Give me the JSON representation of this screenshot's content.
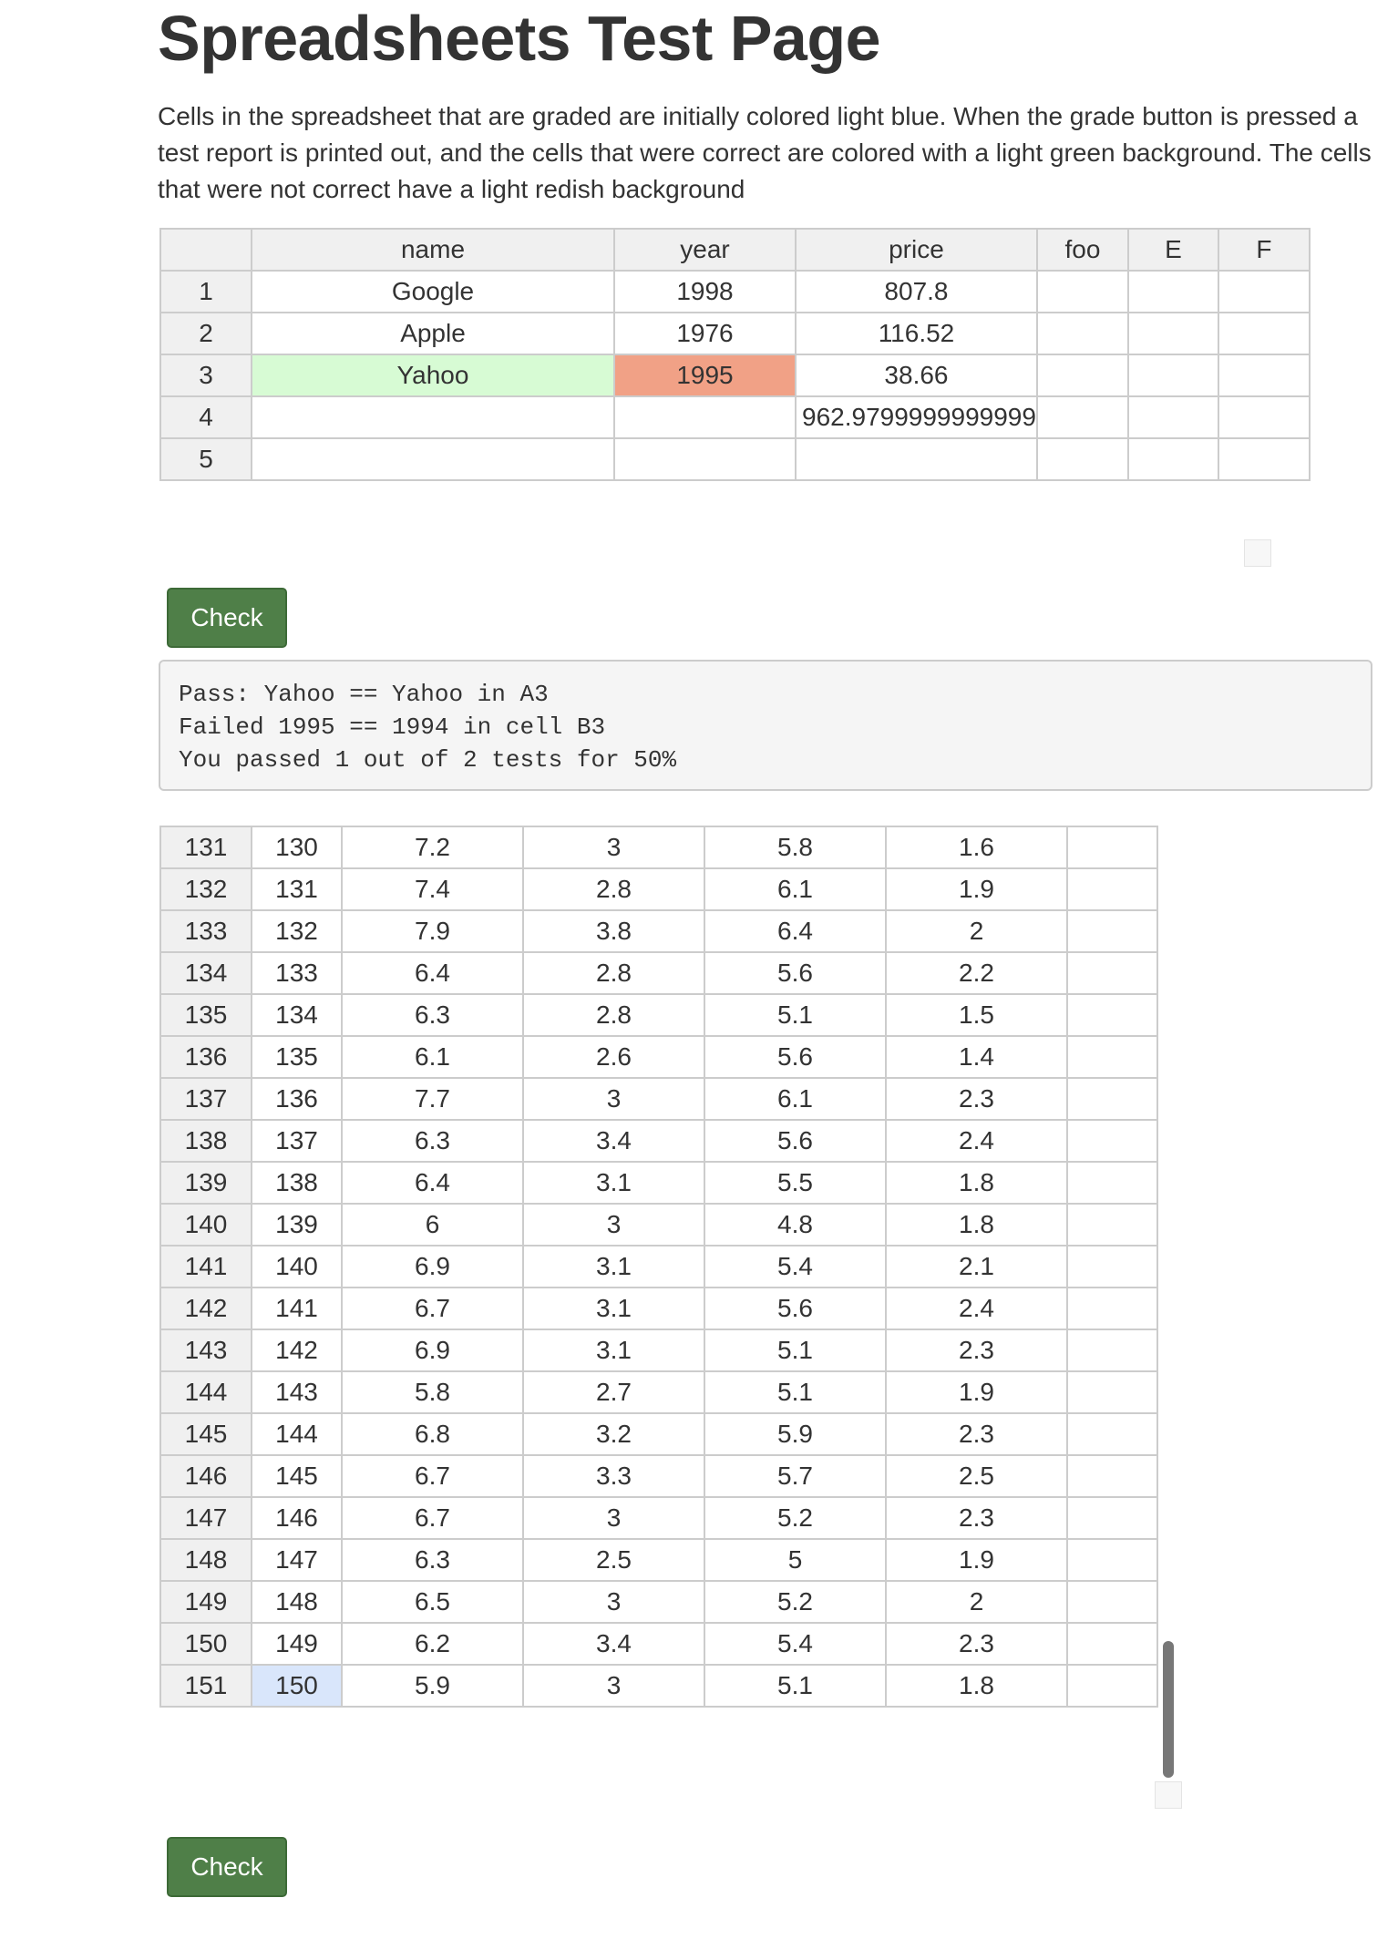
{
  "page": {
    "title": "Spreadsheets Test Page",
    "intro": "Cells in the spreadsheet that are graded are initially colored light blue. When the grade button is pressed a test report is printed out, and the cells that were correct are colored with a light green background. The cells that were not correct have a light redish background"
  },
  "sheet1": {
    "headers": [
      "",
      "name",
      "year",
      "price",
      "foo",
      "E",
      "F"
    ],
    "rows": [
      [
        "1",
        "Google",
        "1998",
        "807.8",
        "",
        "",
        ""
      ],
      [
        "2",
        "Apple",
        "1976",
        "116.52",
        "",
        "",
        ""
      ],
      [
        "3",
        "Yahoo",
        "1995",
        "38.66",
        "",
        "",
        ""
      ],
      [
        "4",
        "",
        "",
        "962.9799999999999",
        "",
        "",
        ""
      ],
      [
        "5",
        "",
        "",
        "",
        "",
        "",
        ""
      ]
    ]
  },
  "buttons": {
    "check_label": "Check"
  },
  "report": {
    "lines": [
      "Pass: Yahoo == Yahoo in A3",
      "Failed 1995 == 1994 in cell B3",
      "You passed 1 out of 2 tests for 50%"
    ]
  },
  "sheet2": {
    "rows": [
      [
        "131",
        "130",
        "7.2",
        "3",
        "5.8",
        "1.6",
        ""
      ],
      [
        "132",
        "131",
        "7.4",
        "2.8",
        "6.1",
        "1.9",
        ""
      ],
      [
        "133",
        "132",
        "7.9",
        "3.8",
        "6.4",
        "2",
        ""
      ],
      [
        "134",
        "133",
        "6.4",
        "2.8",
        "5.6",
        "2.2",
        ""
      ],
      [
        "135",
        "134",
        "6.3",
        "2.8",
        "5.1",
        "1.5",
        ""
      ],
      [
        "136",
        "135",
        "6.1",
        "2.6",
        "5.6",
        "1.4",
        ""
      ],
      [
        "137",
        "136",
        "7.7",
        "3",
        "6.1",
        "2.3",
        ""
      ],
      [
        "138",
        "137",
        "6.3",
        "3.4",
        "5.6",
        "2.4",
        ""
      ],
      [
        "139",
        "138",
        "6.4",
        "3.1",
        "5.5",
        "1.8",
        ""
      ],
      [
        "140",
        "139",
        "6",
        "3",
        "4.8",
        "1.8",
        ""
      ],
      [
        "141",
        "140",
        "6.9",
        "3.1",
        "5.4",
        "2.1",
        ""
      ],
      [
        "142",
        "141",
        "6.7",
        "3.1",
        "5.6",
        "2.4",
        ""
      ],
      [
        "143",
        "142",
        "6.9",
        "3.1",
        "5.1",
        "2.3",
        ""
      ],
      [
        "144",
        "143",
        "5.8",
        "2.7",
        "5.1",
        "1.9",
        ""
      ],
      [
        "145",
        "144",
        "6.8",
        "3.2",
        "5.9",
        "2.3",
        ""
      ],
      [
        "146",
        "145",
        "6.7",
        "3.3",
        "5.7",
        "2.5",
        ""
      ],
      [
        "147",
        "146",
        "6.7",
        "3",
        "5.2",
        "2.3",
        ""
      ],
      [
        "148",
        "147",
        "6.3",
        "2.5",
        "5",
        "1.9",
        ""
      ],
      [
        "149",
        "148",
        "6.5",
        "3",
        "5.2",
        "2",
        ""
      ],
      [
        "150",
        "149",
        "6.2",
        "3.4",
        "5.4",
        "2.3",
        ""
      ],
      [
        "151",
        "150",
        "5.9",
        "3",
        "5.1",
        "1.8",
        ""
      ]
    ]
  },
  "colors": {
    "pass": "#d7fbd4",
    "fail": "#f1a186",
    "selected": "#d9e6fb",
    "button": "#4f7f48"
  }
}
